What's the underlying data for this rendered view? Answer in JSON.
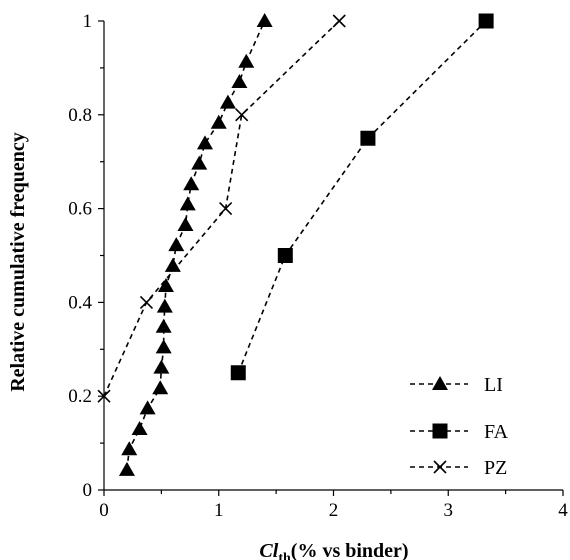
{
  "chart_data": {
    "type": "scatter",
    "xlabel": {
      "main": "Cl",
      "sub": "th",
      "rest": "(% vs binder)"
    },
    "ylabel": "Relative cumulative frequency",
    "xlim": [
      0,
      4
    ],
    "ylim": [
      0,
      1
    ],
    "xticks": [
      0,
      1,
      2,
      3,
      4
    ],
    "yticks": [
      0,
      0.2,
      0.4,
      0.6,
      0.8,
      1
    ],
    "xtick_labels": [
      "0",
      "1",
      "2",
      "3",
      "4"
    ],
    "ytick_labels": [
      "0",
      "0.2",
      "0.4",
      "0.6",
      "0.8",
      "1"
    ],
    "grid": false,
    "legend_position": "bottom-right",
    "series": [
      {
        "name": "LI",
        "marker": "triangle",
        "color": "#000000",
        "x": [
          0.2,
          0.22,
          0.31,
          0.38,
          0.49,
          0.5,
          0.52,
          0.52,
          0.53,
          0.54,
          0.6,
          0.63,
          0.71,
          0.73,
          0.76,
          0.83,
          0.88,
          1.0,
          1.08,
          1.18,
          1.24,
          1.4
        ],
        "y": [
          0.043,
          0.087,
          0.13,
          0.174,
          0.217,
          0.261,
          0.304,
          0.348,
          0.391,
          0.435,
          0.478,
          0.522,
          0.565,
          0.609,
          0.652,
          0.696,
          0.739,
          0.783,
          0.826,
          0.87,
          0.913,
          1.0
        ]
      },
      {
        "name": "FA",
        "marker": "square",
        "color": "#000000",
        "x": [
          1.17,
          1.58,
          2.3,
          3.33
        ],
        "y": [
          0.25,
          0.5,
          0.75,
          1.0
        ]
      },
      {
        "name": "PZ",
        "marker": "cross",
        "color": "#000000",
        "x": [
          0.0,
          0.37,
          1.06,
          1.2,
          2.05
        ],
        "y": [
          0.2,
          0.4,
          0.6,
          0.8,
          1.0
        ]
      }
    ]
  }
}
